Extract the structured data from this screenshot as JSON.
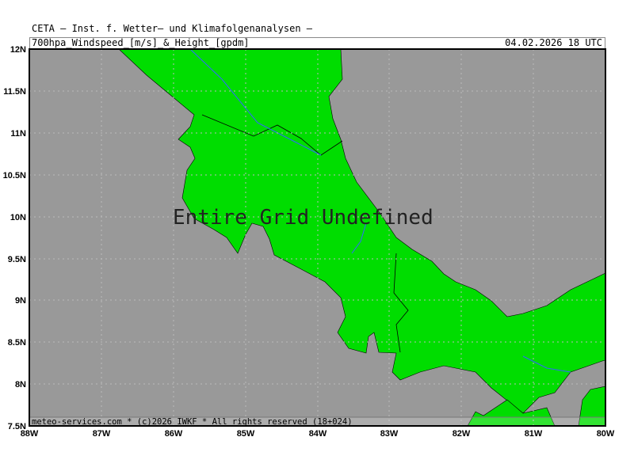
{
  "header": {
    "institute": "CETA – Inst. f. Wetter– und Klimafolgenanalysen –",
    "product": "700hpa_Windspeed_[m/s]_&_Height_[gpdm]",
    "valid": "04.02.2026 18 UTC"
  },
  "map": {
    "message": "Entire Grid Undefined",
    "footer": "meteo-services.com * (c)2026 IWKF * All rights reserved (18+024)",
    "lat_labels": [
      "12N",
      "11.5N",
      "11N",
      "10.5N",
      "10N",
      "9.5N",
      "9N",
      "8.5N",
      "8N",
      "7.5N"
    ],
    "lon_labels": [
      "88W",
      "87W",
      "86W",
      "85W",
      "84W",
      "83W",
      "82W",
      "81W",
      "80W"
    ],
    "colors": {
      "sea": "#999999",
      "land": "#00dd00",
      "river": "#3366ff",
      "border": "#000000"
    }
  }
}
